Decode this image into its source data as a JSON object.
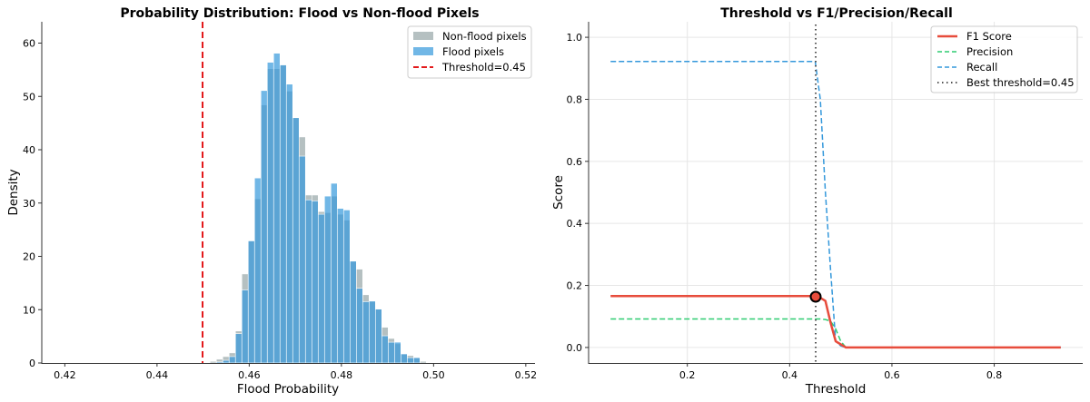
{
  "chart_data": [
    {
      "type": "bar",
      "subtype": "overlaid-histogram",
      "title": "Probability Distribution: Flood vs Non-flood Pixels",
      "xlabel": "Flood Probability",
      "ylabel": "Density",
      "xlim": [
        0.415,
        0.522
      ],
      "ylim": [
        0,
        64
      ],
      "xticks": [
        "0.42",
        "0.44",
        "0.46",
        "0.48",
        "0.50",
        "0.52"
      ],
      "xtick_values": [
        0.42,
        0.44,
        0.46,
        0.48,
        0.5,
        0.52
      ],
      "yticks": [
        "0",
        "10",
        "20",
        "30",
        "40",
        "50",
        "60"
      ],
      "ytick_values": [
        0,
        10,
        20,
        30,
        40,
        50,
        60
      ],
      "grid": false,
      "legend_position": "upper right",
      "bin_width": 0.00138,
      "bin_edges_start": 0.4515,
      "series": [
        {
          "name": "Non-flood pixels",
          "color": "#95a5a6",
          "alpha": 0.7,
          "values": [
            0.3,
            0.7,
            1.2,
            1.9,
            6.0,
            16.7,
            22.9,
            30.8,
            48.4,
            55.2,
            55.2,
            55.9,
            51.0,
            46.0,
            42.4,
            31.5,
            31.5,
            28.4,
            28.2,
            31.3,
            27.9,
            26.8,
            19.1,
            17.6,
            12.8,
            11.6,
            10.1,
            6.7,
            4.6,
            3.6,
            1.7,
            1.4,
            1.0,
            0.3
          ]
        },
        {
          "name": "Flood pixels",
          "color": "#3498db",
          "alpha": 0.7,
          "values": [
            0.0,
            0.2,
            0.5,
            1.2,
            5.5,
            13.7,
            22.9,
            34.7,
            51.1,
            56.4,
            58.1,
            55.9,
            52.3,
            46.0,
            38.8,
            30.6,
            30.4,
            27.9,
            31.3,
            33.7,
            29.0,
            28.7,
            19.1,
            14.0,
            11.5,
            11.6,
            10.1,
            5.1,
            3.9,
            3.9,
            1.7,
            1.0,
            1.0,
            0.0
          ]
        }
      ],
      "annotations": [
        {
          "type": "vline",
          "x": 0.45,
          "label": "Threshold=0.45",
          "color": "#e31a1c",
          "style": "dashed"
        }
      ],
      "legend": [
        "Non-flood pixels",
        "Flood pixels",
        "Threshold=0.45"
      ]
    },
    {
      "type": "line",
      "title": "Threshold vs F1/Precision/Recall",
      "xlabel": "Threshold",
      "ylabel": "Score",
      "xlim": [
        0.007,
        0.973
      ],
      "ylim": [
        -0.05,
        1.05
      ],
      "xticks": [
        "0.2",
        "0.4",
        "0.6",
        "0.8"
      ],
      "xtick_values": [
        0.2,
        0.4,
        0.6,
        0.8
      ],
      "yticks": [
        "0.0",
        "0.2",
        "0.4",
        "0.6",
        "0.8",
        "1.0"
      ],
      "ytick_values": [
        0.0,
        0.2,
        0.4,
        0.6,
        0.8,
        1.0
      ],
      "grid": true,
      "legend_position": "upper right",
      "x": [
        0.05,
        0.45,
        0.46,
        0.47,
        0.48,
        0.49,
        0.5,
        0.51,
        0.93
      ],
      "series": [
        {
          "name": "F1 Score",
          "color": "#e74c3c",
          "style": "solid",
          "values": [
            0.166,
            0.166,
            0.16,
            0.15,
            0.08,
            0.02,
            0.01,
            0.0,
            0.0
          ]
        },
        {
          "name": "Precision",
          "color": "#2ecc71",
          "style": "dashed",
          "values": [
            0.092,
            0.092,
            0.092,
            0.09,
            0.085,
            0.06,
            0.02,
            0.0,
            0.0
          ]
        },
        {
          "name": "Recall",
          "color": "#3498db",
          "style": "dashed",
          "values": [
            0.922,
            0.922,
            0.8,
            0.5,
            0.25,
            0.02,
            0.005,
            0.0,
            0.0
          ]
        }
      ],
      "annotations": [
        {
          "type": "vline",
          "x": 0.45,
          "label": "Best threshold=0.45",
          "color": "#555555",
          "style": "dotted"
        },
        {
          "type": "marker",
          "x": 0.45,
          "y": 0.166,
          "color": "#e74c3c",
          "edge": "#000000"
        }
      ],
      "legend": [
        "F1 Score",
        "Precision",
        "Recall",
        "Best threshold=0.45"
      ]
    }
  ],
  "left": {
    "title": "Probability Distribution: Flood vs Non-flood Pixels",
    "xlabel": "Flood Probability",
    "ylabel": "Density",
    "legend": [
      "Non-flood pixels",
      "Flood pixels",
      "Threshold=0.45"
    ]
  },
  "right": {
    "title": "Threshold vs F1/Precision/Recall",
    "xlabel": "Threshold",
    "ylabel": "Score",
    "legend": [
      "F1 Score",
      "Precision",
      "Recall",
      "Best threshold=0.45"
    ]
  }
}
